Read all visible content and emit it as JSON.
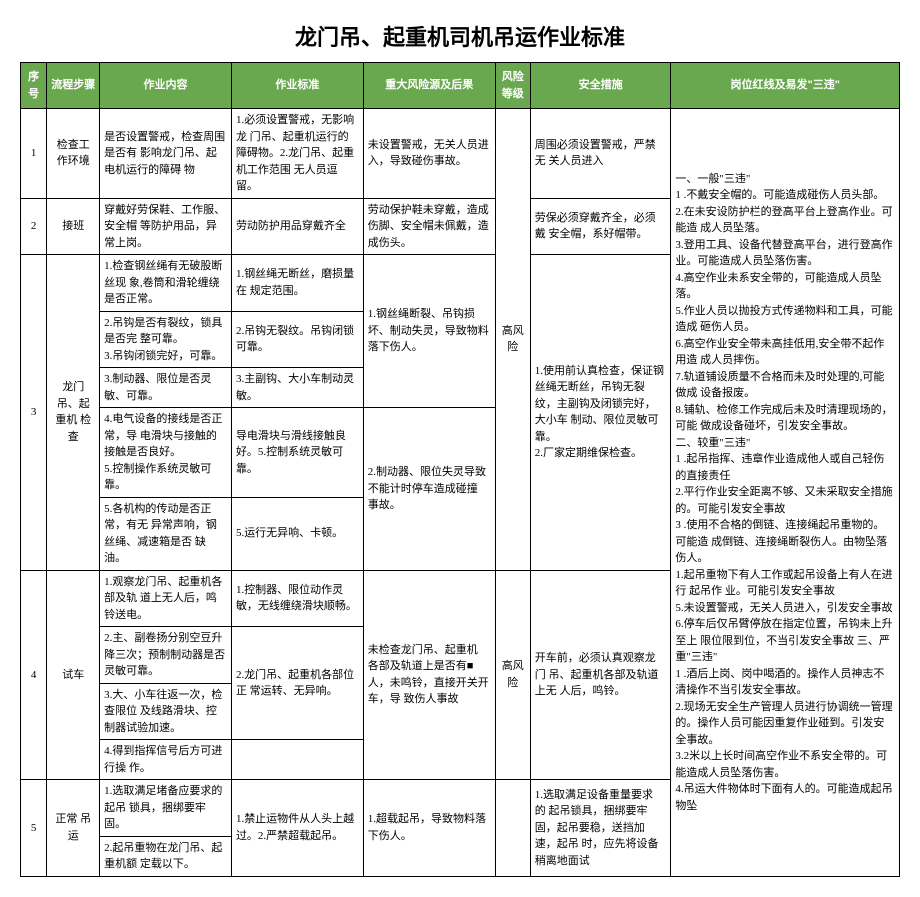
{
  "title": "龙门吊、起重机司机吊运作业标准",
  "headers": {
    "seq": "序号",
    "step": "流程步骤",
    "content": "作业内容",
    "standard": "作业标准",
    "risk": "重大风险源及后果",
    "level": "风险等级",
    "measure": "安全措施",
    "redline": "岗位红线及易发\"三违\""
  },
  "r1": {
    "seq": "1",
    "step": "检查工作环境",
    "content": "是否设置警戒，检查周围是否有 影响龙门吊、起电机运行的障碍 物",
    "standard": "1.必须设置警戒，无影响龙 门吊、起重机运行的障碍物。2.龙门吊、起重机工作范围 无人员逗留。",
    "risk": "未设置警戒，无关人员进入，导致碰伤事故。",
    "measure": "周围必须设置警戒，严禁无 关人员进入"
  },
  "r2": {
    "seq": "2",
    "step": "接班",
    "content": "穿戴好劳保鞋、工作服、安全帽 等防护用品，异常上岗。",
    "standard": "劳动防护用品穿戴齐全",
    "risk": "劳动保护鞋未穿戴，造成 伤脚、安全帽未佩戴，造 成伤头。",
    "measure": "劳保必须穿戴齐全，必须戴 安全帽，系好帽带。"
  },
  "r3": {
    "seq": "3",
    "step": "龙门吊、起重机 检查",
    "level": "高风险",
    "c1": "1.检查钢丝绳有无破股断丝现 象,卷筒和滑轮缠绕是否正常。",
    "s1": "1.钢丝绳无断丝，磨损量在 规定范围。",
    "k1": "1.钢丝绳断裂、吊钩损 坏、制动失灵，导致物料 落下伤人。",
    "c2": "2.吊钩是否有裂纹，锁具是否完 整可靠。",
    "s2": "2.吊钩无裂纹。吊钩闭锁可靠。",
    "c3": "3.吊钩闭锁完好，可靠。",
    "c4": "3.制动器、限位是否灵敏、可靠。",
    "s4": "3.主副钩、大小车制动灵敏。",
    "k4": "2.制动器、限位失灵导致 不能计时停车造成碰撞 事故。",
    "c5": "4.电气设备的接线是否正常，导 电滑块与接触的接触是否良好。",
    "s5": "导电滑块与滑线接触良 好。5.控制系统灵敏可靠。",
    "c5b": "5.控制操作系统灵敏可靠。",
    "c6": "5.各机构的传动是否正常，有无 异常声响，钢丝绳、减速箱是否 缺油。",
    "s6": "5.运行无异响、卡顿。",
    "m1": "1.使用前认真检查，保证钢 丝绳无断丝，吊钩无裂纹，主副钩及闭锁完好，大小车 制动、限位灵敏可靠。",
    "m2": "2.厂家定期维保检查。"
  },
  "r4": {
    "seq": "4",
    "step": "试车",
    "level": "高风险",
    "c1": "1.观察龙门吊、起重机各部及轨 道上无人后，鸣铃送电。",
    "s1": "1.控制器、限位动作灵敏，无线缠绕滑块顺畅。",
    "c2": "2.主、副卷扬分别空豆升降三次；预制制动器是否灵敏可靠。",
    "c3": "3.大、小车往返一次，检查限位 及线路滑块、控制器试验加速。",
    "s3": "2.龙门吊、起重机各部位正 常运转、无异响。",
    "c4": "4.得到指挥信号后方可进行操 作。",
    "k1": "未检查龙门吊、起重机 各部及轨道上是否有■人，未鸣铃，直接开关开车，导 致伤人事故",
    "m1": "开车前，必须认真观察龙门 吊、起重机各部及轨道上无 人后，鸣铃。"
  },
  "r5": {
    "seq": "5",
    "step": "正常 吊运",
    "c1": "1.选取满足堵备应要求的起吊 锁具，捆绑要牢固。",
    "c2": "2.起吊重物在龙门吊、起重机额 定载以下。",
    "s1": "1.禁止运物件从人头上越 过。2.严禁超载起吊。",
    "k1": "1.超载起吊，导致物料落 下伤人。",
    "m1": "1.选取满足设备重量要求 的 起吊锁具，捆绑要牢固，起吊要稳，送挡加速，起吊 时，应先将设备稍离地面试"
  },
  "redlines": {
    "l0": "一、一般\"三违\"",
    "l1": "1        .不戴安全帽的。可能造成碰伤人员头部。",
    "l2": "2.在未安设防护栏的登高平台上登高作业。可能造 成人员坠落。",
    "l3": "3.登用工具、设备代替登高平台，进行登高作业。可能造成人员坠落伤害。",
    "l4": "4.高空作业未系安全带的，可能造成人员坠落。",
    "l5": "5.作业人员以抛投方式传递物料和工具，可能造成 砸伤人员。",
    "l6": "6.高空作业安全带未高挂低用,安全带不起作用造 成人员摔伤。",
    "l7": "7.轨道铺设质量不合格而未及时处理的,可能做成 设备报废。",
    "l8": "8.铺轨、检修工作完成后未及时清理现场的，可能 做成设备碰坏，引发安全事故。",
    "l9": "二、较重\"三违\"",
    "l10": "1          .起吊指挥、违章作业造成他人或自己轻伤的直接责任",
    "l11": "2.平行作业安全距离不够、又未采取安全措施的。可能引发安全事故",
    "l12": "3        .使用不合格的倒链、连接绳起吊重物的。可能造 成倒链、连接绳断裂伤人。由物坠落伤人。",
    "l13": "1.起吊重物下有人工作或起吊设备上有人在进行 起吊作 业。可能引发安全事故",
    "l14": "5.未设置警戒，无关人员进入，引发安全事故",
    "l15": "6.停车后仅吊臂停放在指定位置，吊钩未上升至上 限位限到位，不当引发安全事故 三、严重\"三违\"",
    "l16": "1          .酒后上岗、岗中喝酒的。操作人员神志不清操作不当引发安全事故。",
    "l17": "2.现场无安全生产管理人员进行协调统一管理的。操作人员可能因重复作业碰到。引发安全事故。",
    "l18": "3.2米以上长时间高空作业不系安全带的。可能造成人员坠落伤害。",
    "l19": "4.吊运大件物体时下面有人的。可能造成起吊物坠"
  }
}
